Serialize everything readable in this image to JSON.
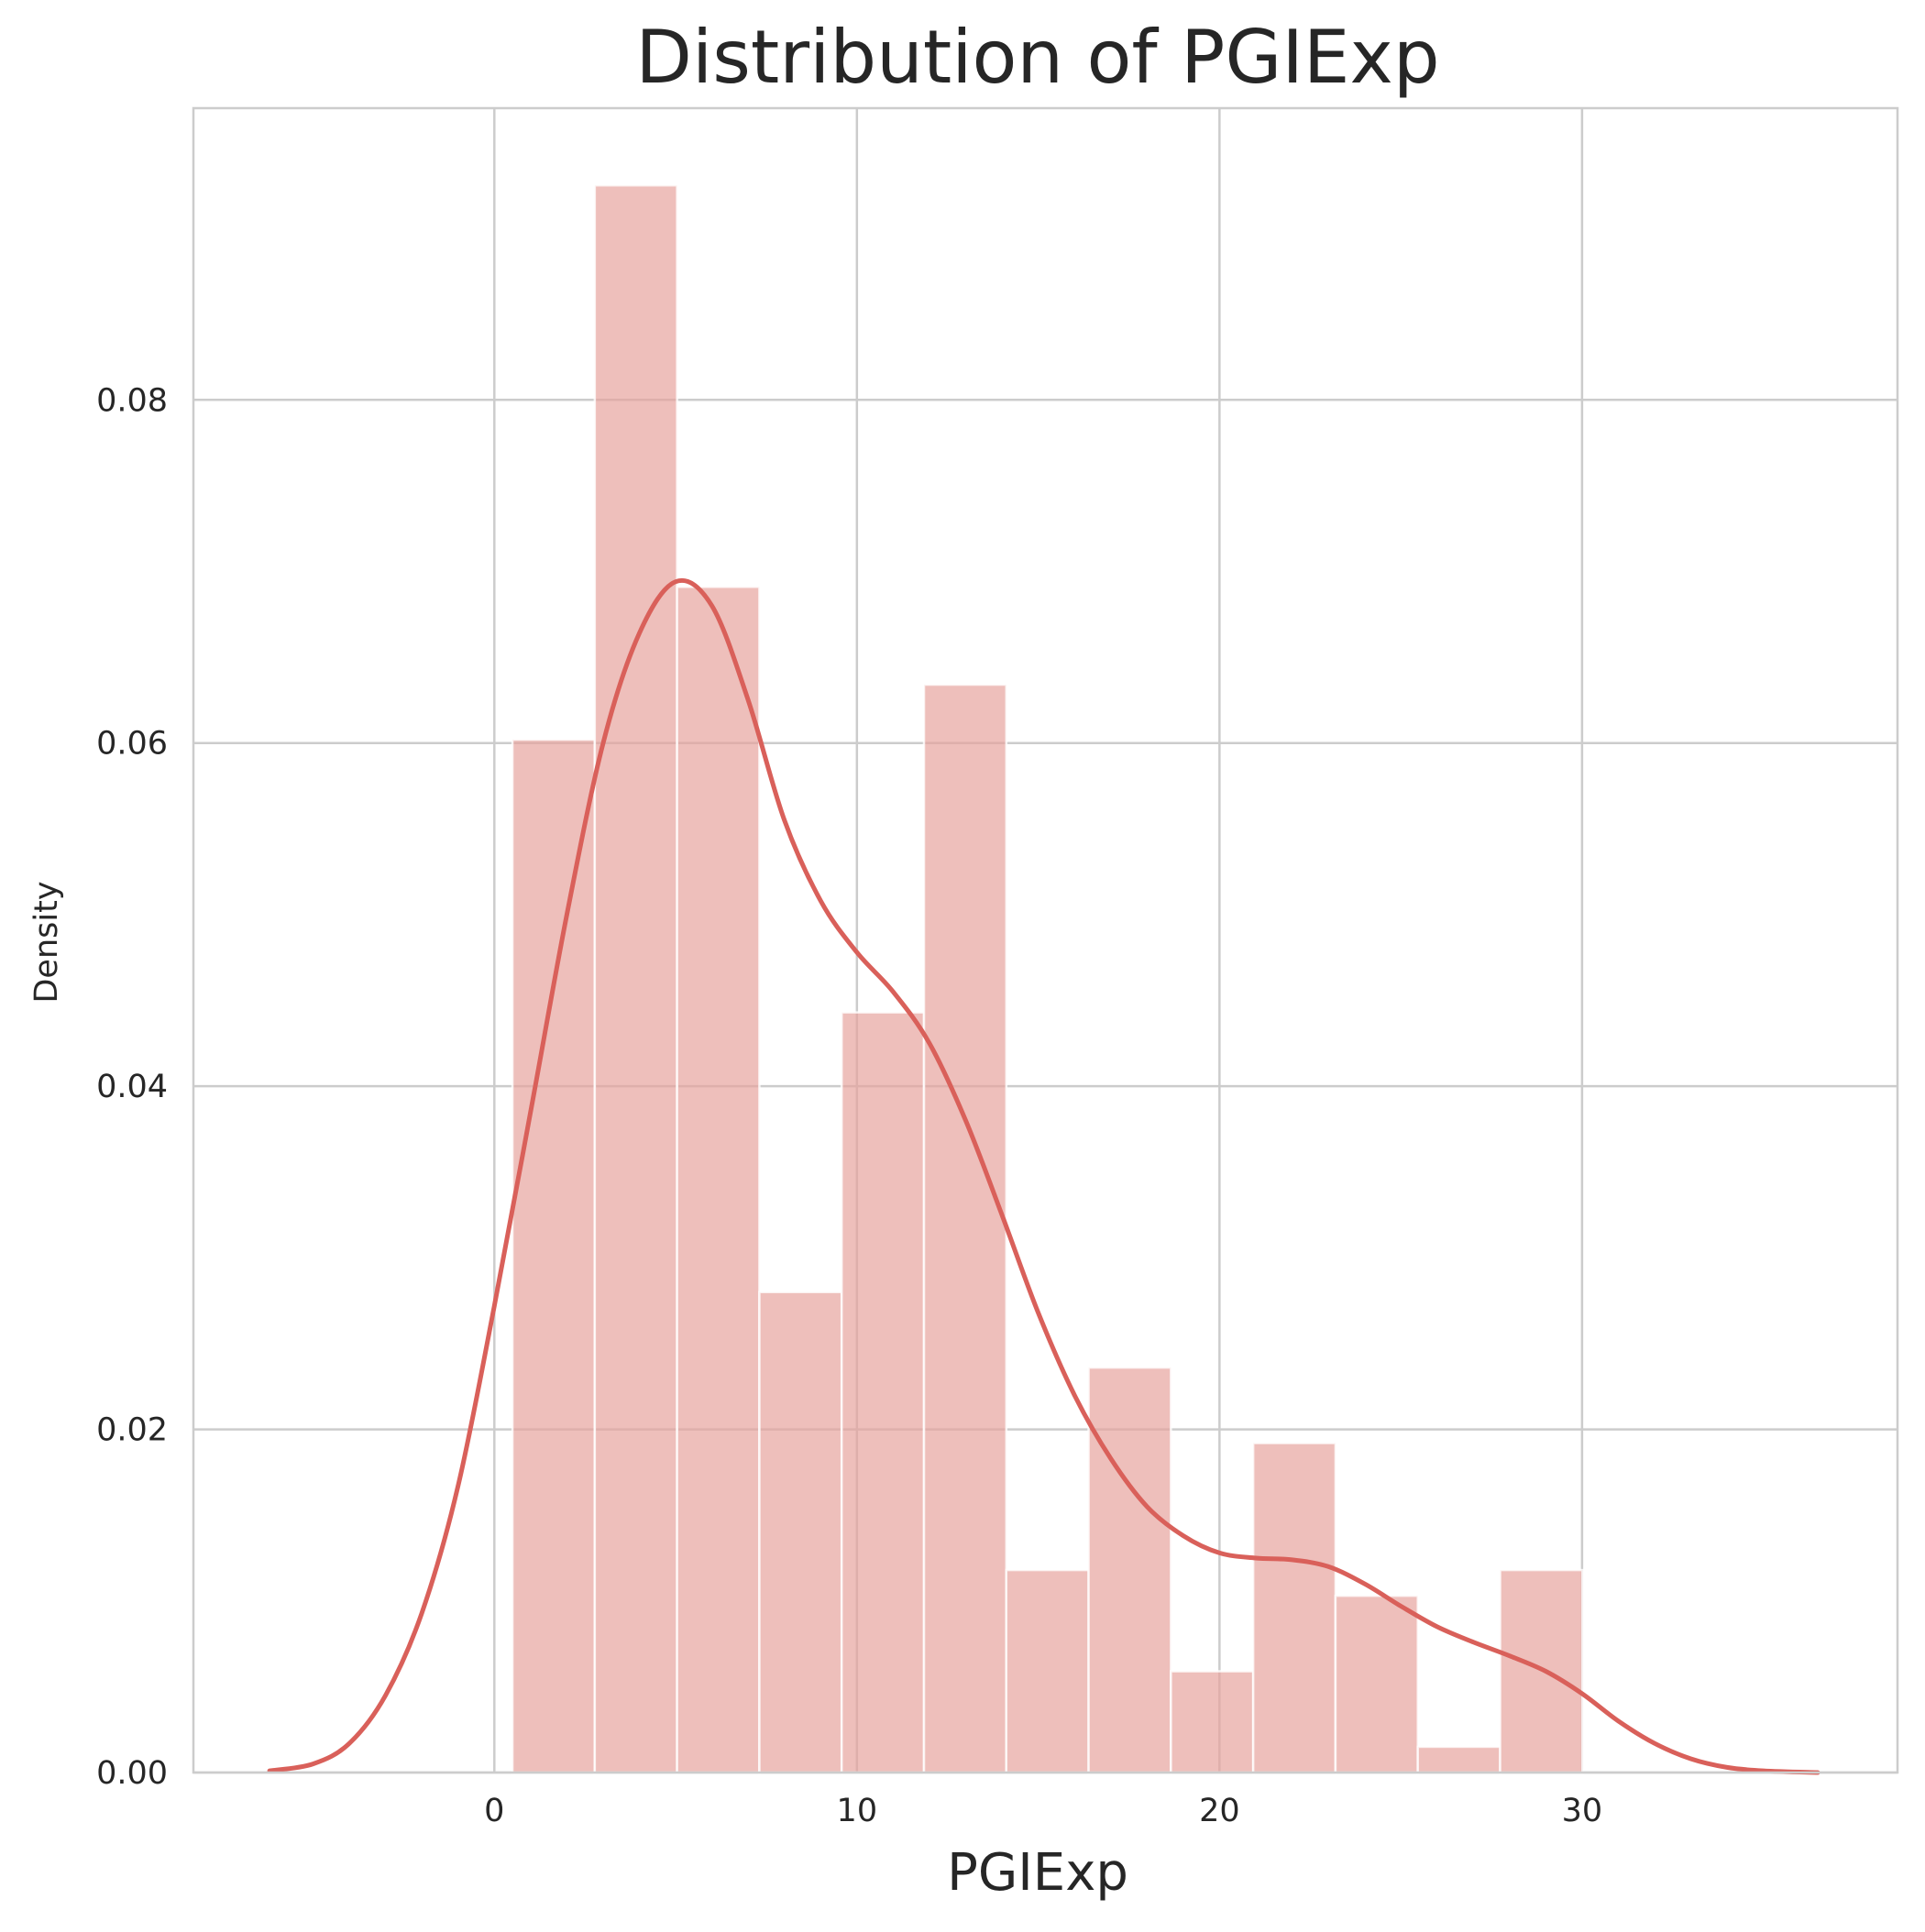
{
  "chart_data": {
    "type": "bar",
    "title": "Distribution of PGIExp",
    "xlabel": "PGIExp",
    "ylabel": "Density",
    "xlim": [
      -8.3,
      38.7
    ],
    "ylim": [
      0,
      0.097
    ],
    "xticks": [
      0,
      10,
      20,
      30
    ],
    "xtick_labels": [
      "0",
      "10",
      "20",
      "30"
    ],
    "yticks": [
      0.0,
      0.02,
      0.04,
      0.06,
      0.08
    ],
    "ytick_labels": [
      "0.00",
      "0.02",
      "0.04",
      "0.06",
      "0.08"
    ],
    "grid": true,
    "histogram": {
      "bin_edges": [
        0.5,
        2.77,
        5.04,
        7.31,
        9.58,
        11.85,
        14.12,
        16.39,
        18.66,
        20.93,
        23.2,
        25.47,
        27.74,
        30.01
      ],
      "values": [
        0.0602,
        0.0925,
        0.0691,
        0.028,
        0.0443,
        0.0634,
        0.0118,
        0.0236,
        0.0059,
        0.0192,
        0.0103,
        0.0015,
        0.0118
      ],
      "color": "#e6a09b"
    },
    "kde": {
      "color": "#d9605a",
      "x": [
        -6.2,
        -5,
        -4,
        -3,
        -2,
        -1,
        0,
        1,
        2,
        3,
        4,
        5,
        6,
        7,
        8,
        9,
        10,
        11,
        12,
        13,
        14,
        15,
        16,
        17,
        18,
        19,
        20,
        21,
        22,
        23,
        24,
        25,
        26,
        27,
        28,
        29,
        30,
        31,
        32,
        33,
        34,
        35,
        36.5
      ],
      "y": [
        0.0001,
        0.0005,
        0.0017,
        0.0045,
        0.0093,
        0.0167,
        0.0272,
        0.0385,
        0.05,
        0.06,
        0.0664,
        0.0694,
        0.068,
        0.0625,
        0.0555,
        0.0508,
        0.0478,
        0.0455,
        0.0425,
        0.038,
        0.0325,
        0.0268,
        0.022,
        0.0183,
        0.0155,
        0.0138,
        0.0128,
        0.0125,
        0.0124,
        0.012,
        0.011,
        0.0097,
        0.0085,
        0.0076,
        0.0068,
        0.0059,
        0.0046,
        0.003,
        0.0017,
        0.0008,
        0.0003,
        0.0001,
        0.0
      ]
    }
  }
}
